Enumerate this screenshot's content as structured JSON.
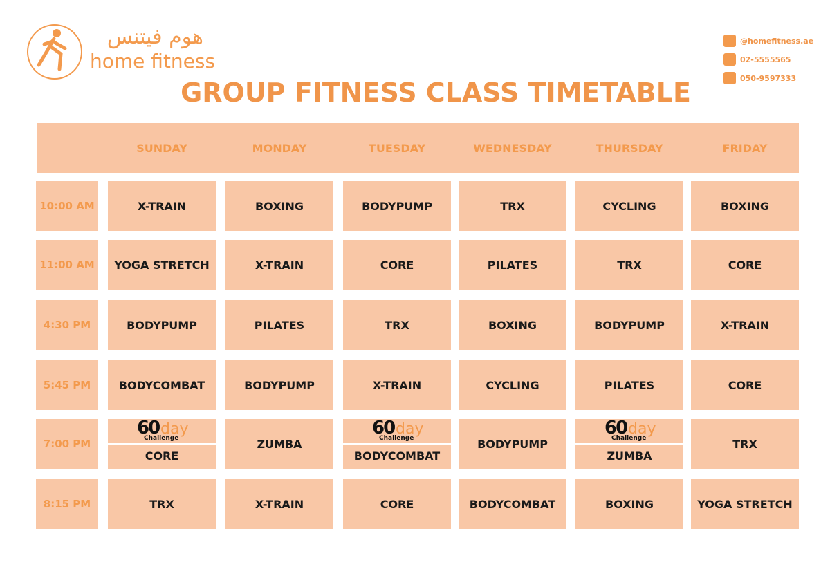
{
  "header": {
    "logo_arabic": "هوم فيتنس",
    "logo_text": "home fitness",
    "title": "GROUP FITNESS CLASS TIMETABLE",
    "contacts": [
      "@homefitness.ae",
      "02-5555565",
      "050-9597333"
    ]
  },
  "table": {
    "days": [
      "SUNDAY",
      "MONDAY",
      "TUESDAY",
      "WEDNESDAY",
      "THURSDAY",
      "FRIDAY"
    ],
    "rows": [
      {
        "time": "10:00 AM",
        "cells": [
          "X-TRAIN",
          "BOXING",
          "BODYPUMP",
          "TRX",
          "CYCLING",
          "BOXING"
        ]
      },
      {
        "time": "11:00 AM",
        "cells": [
          "YOGA STRETCH",
          "X-TRAIN",
          "CORE",
          "PILATES",
          "TRX",
          "CORE"
        ]
      },
      {
        "time": "4:30 PM",
        "cells": [
          "BODYPUMP",
          "PILATES",
          "TRX",
          "BOXING",
          "BODYPUMP",
          "X-TRAIN"
        ]
      },
      {
        "time": "5:45 PM",
        "cells": [
          "BODYCOMBAT",
          "BODYPUMP",
          "X-TRAIN",
          "CYCLING",
          "PILATES",
          "CORE"
        ]
      },
      {
        "time": "7:00 PM",
        "cells": [
          {
            "badge_number": "60",
            "badge_unit": "day",
            "badge_text": "Challenge",
            "class": "CORE"
          },
          "ZUMBA",
          {
            "badge_number": "60",
            "badge_unit": "day",
            "badge_text": "Challenge",
            "class": "BODYCOMBAT"
          },
          "BODYPUMP",
          {
            "badge_number": "60",
            "badge_unit": "day",
            "badge_text": "Challenge",
            "class": "ZUMBA"
          },
          "TRX"
        ]
      },
      {
        "time": "8:15 PM",
        "cells": [
          "TRX",
          "X-TRAIN",
          "CORE",
          "BODYCOMBAT",
          "BOXING",
          "YOGA STRETCH"
        ]
      }
    ]
  }
}
